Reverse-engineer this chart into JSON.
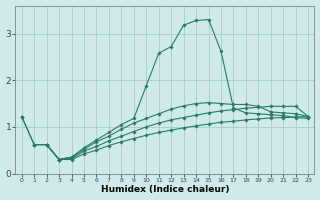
{
  "xlabel": "Humidex (Indice chaleur)",
  "bg_color": "#ceeaea",
  "grid_color": "#a8cccc",
  "line_color": "#2a7a6a",
  "xlim": [
    -0.5,
    23.5
  ],
  "ylim": [
    0,
    3.6
  ],
  "yticks": [
    0,
    1,
    2,
    3
  ],
  "xticks": [
    0,
    1,
    2,
    3,
    4,
    5,
    6,
    7,
    8,
    9,
    10,
    11,
    12,
    13,
    14,
    15,
    16,
    17,
    18,
    19,
    20,
    21,
    22,
    23
  ],
  "series": [
    {
      "x": [
        1,
        2,
        3,
        4,
        5,
        6,
        7,
        8,
        9,
        10,
        11,
        12,
        13,
        14,
        15,
        16,
        17,
        18,
        19,
        20,
        21,
        22,
        23
      ],
      "y": [
        0.62,
        0.62,
        0.3,
        0.3,
        0.42,
        0.5,
        0.6,
        0.68,
        0.75,
        0.82,
        0.88,
        0.93,
        0.98,
        1.02,
        1.06,
        1.1,
        1.12,
        1.15,
        1.17,
        1.19,
        1.2,
        1.21,
        1.22
      ]
    },
    {
      "x": [
        1,
        2,
        3,
        4,
        5,
        6,
        7,
        8,
        9,
        10,
        11,
        12,
        13,
        14,
        15,
        16,
        17,
        18,
        19,
        20,
        21,
        22,
        23
      ],
      "y": [
        0.62,
        0.62,
        0.3,
        0.32,
        0.48,
        0.58,
        0.7,
        0.8,
        0.9,
        1.0,
        1.08,
        1.15,
        1.2,
        1.25,
        1.3,
        1.34,
        1.37,
        1.4,
        1.42,
        1.44,
        1.44,
        1.44,
        1.22
      ]
    },
    {
      "x": [
        0,
        1,
        2,
        3,
        4,
        5,
        6,
        7,
        8,
        9,
        10,
        11,
        12,
        13,
        14,
        15,
        16,
        17,
        18,
        19,
        20,
        21,
        22,
        23
      ],
      "y": [
        1.22,
        0.62,
        0.62,
        0.3,
        0.35,
        0.52,
        0.68,
        0.8,
        0.95,
        1.08,
        1.18,
        1.28,
        1.38,
        1.45,
        1.5,
        1.52,
        1.5,
        1.48,
        1.48,
        1.44,
        1.32,
        1.3,
        1.28,
        1.22
      ]
    },
    {
      "x": [
        0,
        1,
        2,
        3,
        4,
        5,
        6,
        7,
        8,
        9,
        10,
        11,
        12,
        13,
        14,
        15,
        16,
        17,
        18,
        19,
        20,
        21,
        22,
        23
      ],
      "y": [
        1.22,
        0.62,
        0.62,
        0.3,
        0.35,
        0.55,
        0.72,
        0.88,
        1.05,
        1.18,
        1.88,
        2.58,
        2.72,
        3.18,
        3.28,
        3.3,
        2.62,
        1.4,
        1.3,
        1.28,
        1.26,
        1.24,
        1.2,
        1.18
      ]
    }
  ]
}
